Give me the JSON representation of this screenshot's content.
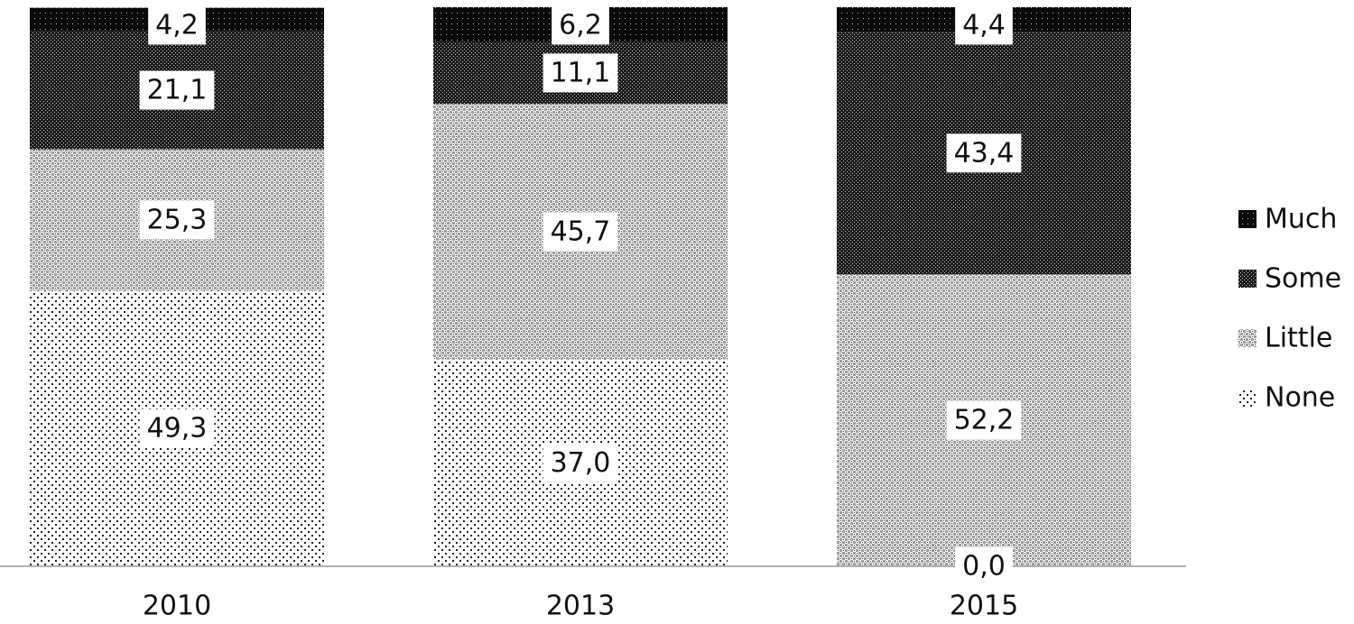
{
  "chart_data": {
    "type": "bar",
    "stacked": true,
    "categories": [
      "2010",
      "2013",
      "2015"
    ],
    "series": [
      {
        "name": "None",
        "values": [
          49.3,
          37.0,
          0.0
        ],
        "labels": [
          "49,3",
          "37,0",
          "0,0"
        ],
        "pattern": "pat-none"
      },
      {
        "name": "Little",
        "values": [
          25.3,
          45.7,
          52.2
        ],
        "labels": [
          "25,3",
          "45,7",
          "52,2"
        ],
        "pattern": "pat-little"
      },
      {
        "name": "Some",
        "values": [
          21.1,
          11.1,
          43.4
        ],
        "labels": [
          "21,1",
          "11,1",
          "43,4"
        ],
        "pattern": "pat-some"
      },
      {
        "name": "Much",
        "values": [
          4.2,
          6.2,
          4.4
        ],
        "labels": [
          "4,2",
          "6,2",
          "4,4"
        ],
        "pattern": "pat-much"
      }
    ],
    "legend_order": [
      "Much",
      "Some",
      "Little",
      "None"
    ],
    "ylim": [
      0,
      100
    ],
    "grid": false,
    "legend_position": "right",
    "title": "",
    "xlabel": "",
    "ylabel": ""
  }
}
